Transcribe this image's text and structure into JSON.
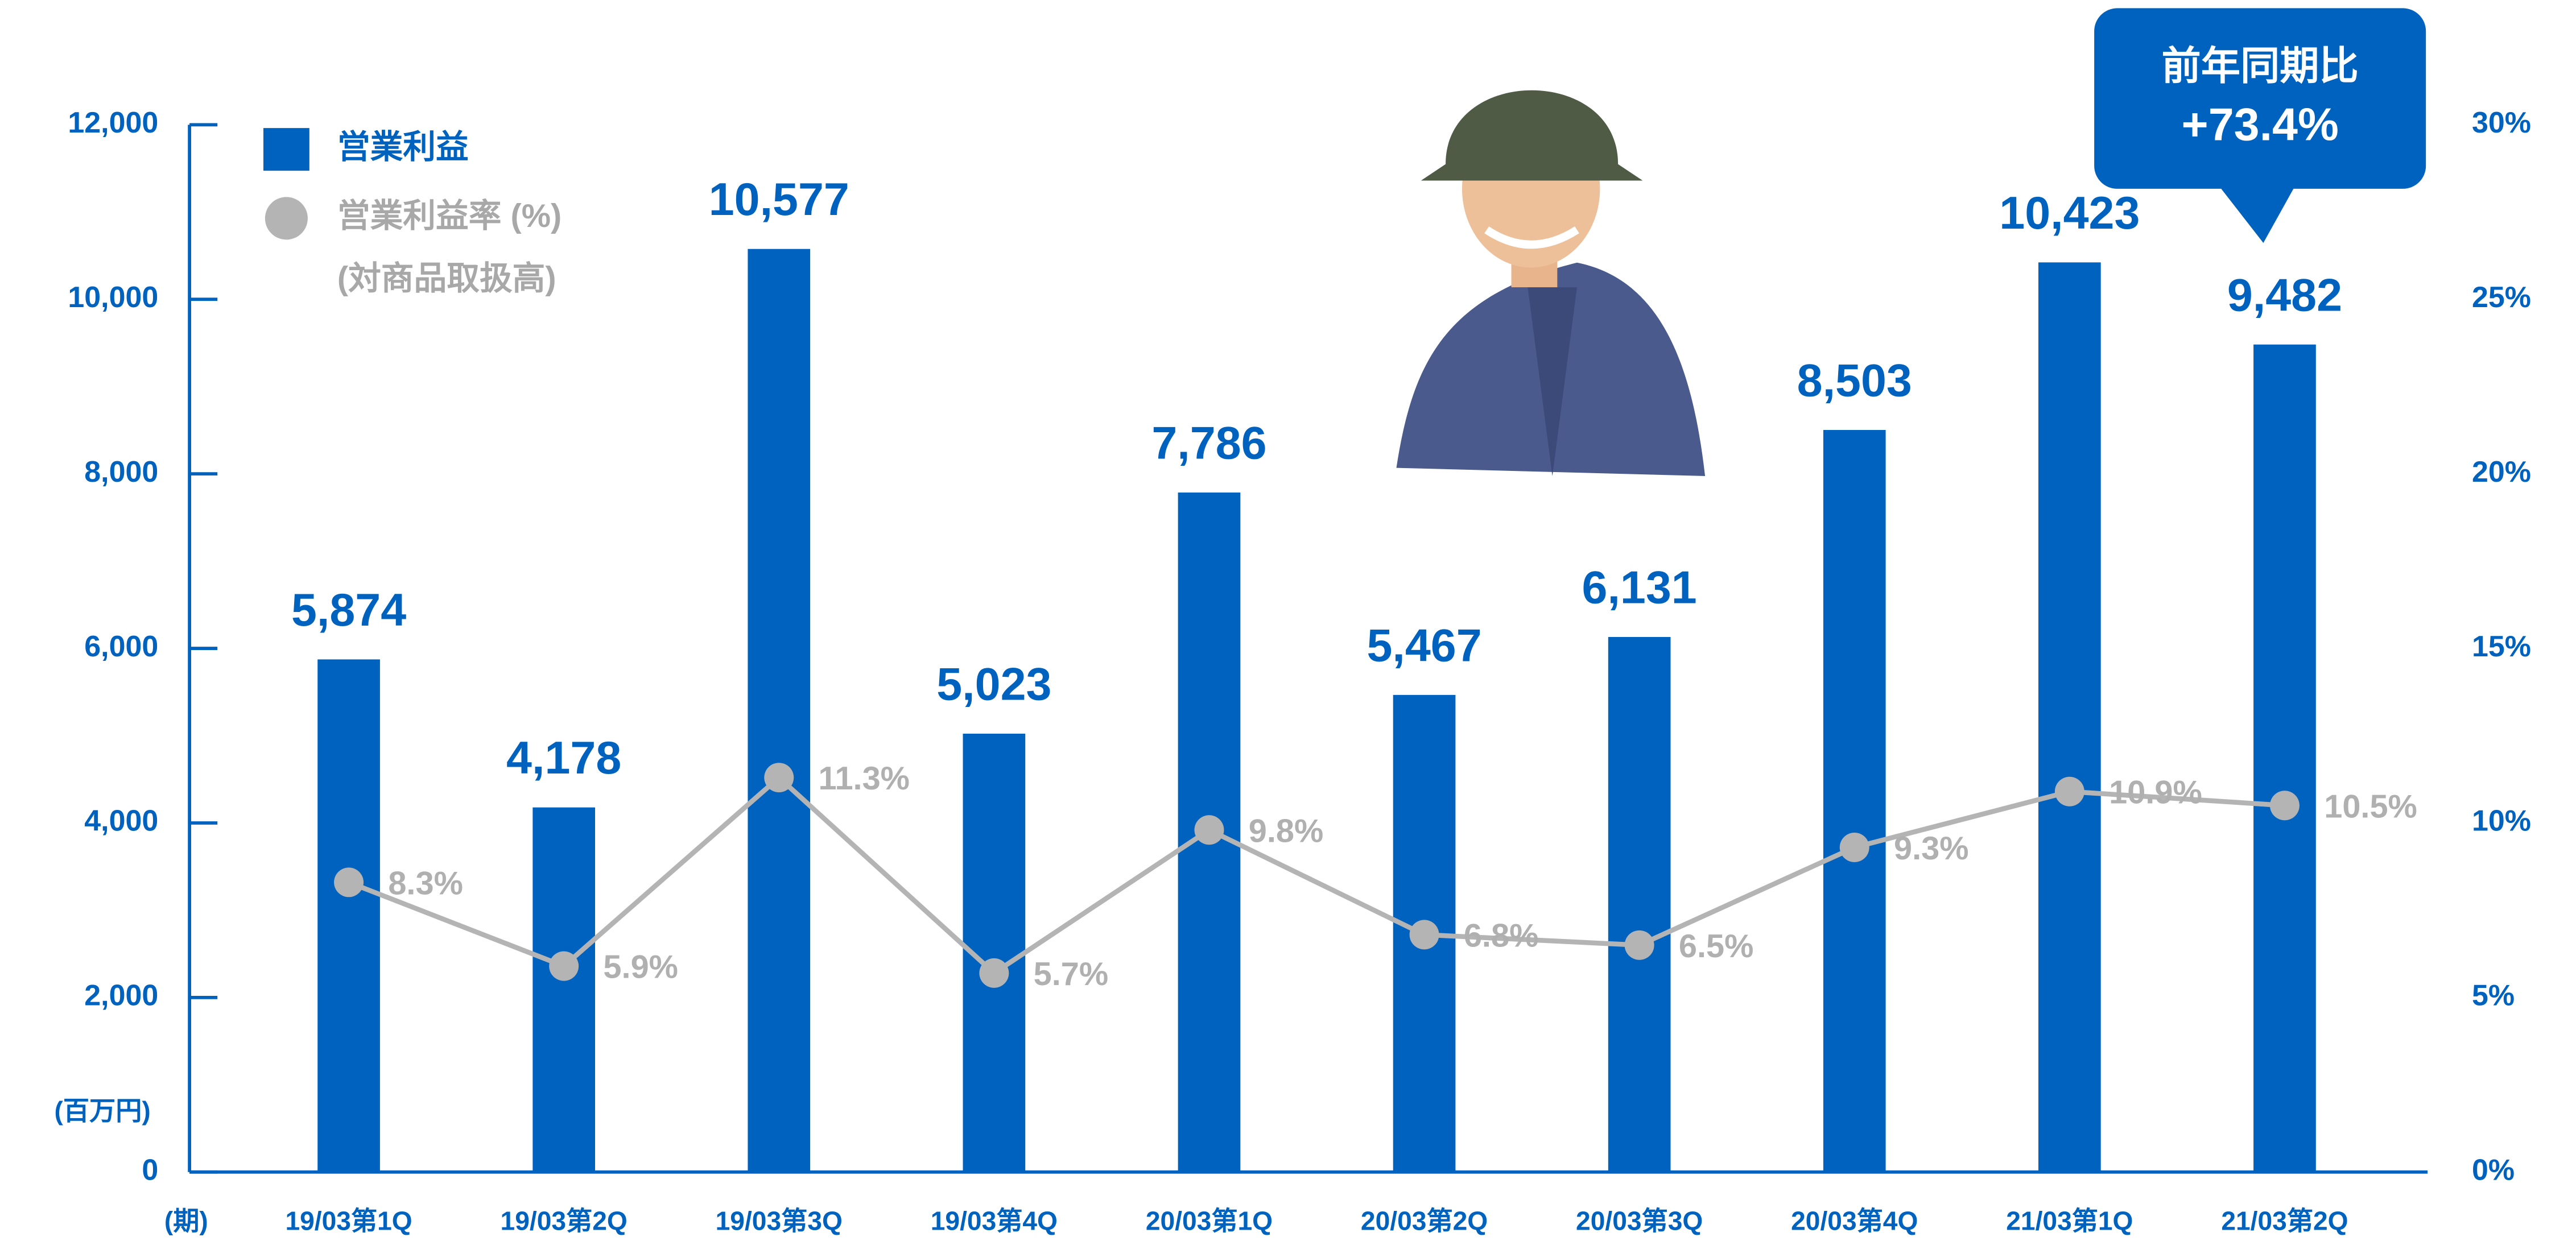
{
  "chart_data": {
    "type": "bar",
    "y_label": "(百万円)",
    "x_label": "(期)",
    "categories": [
      "19/03第1Q",
      "19/03第2Q",
      "19/03第3Q",
      "19/03第4Q",
      "20/03第1Q",
      "20/03第2Q",
      "20/03第3Q",
      "20/03第4Q",
      "21/03第1Q",
      "21/03第2Q"
    ],
    "series": [
      {
        "name": "営業利益",
        "type": "bar",
        "color": "#0062bf",
        "values": [
          5874,
          4178,
          10577,
          5023,
          7786,
          5467,
          6131,
          8503,
          10423,
          9482
        ],
        "value_labels": [
          "5,874",
          "4,178",
          "10,577",
          "5,023",
          "7,786",
          "5,467",
          "6,131",
          "8,503",
          "10,423",
          "9,482"
        ]
      },
      {
        "name": "営業利益率 (%)",
        "type": "line",
        "axis": "y2",
        "color": "#b4b4b4",
        "values": [
          8.3,
          5.9,
          11.3,
          5.7,
          9.8,
          6.8,
          6.5,
          9.3,
          10.9,
          10.5
        ],
        "value_labels": [
          "8.3%",
          "5.9%",
          "11.3%",
          "5.7%",
          "9.8%",
          "6.8%",
          "6.5%",
          "9.3%",
          "10.9%",
          "10.5%"
        ]
      }
    ],
    "legend_note": "(対商品取扱高)",
    "annotation": {
      "title": "前年同期比",
      "text": "+73.4%"
    },
    "ylim": [
      0,
      12000
    ],
    "yticks": [
      0,
      {
        "value": 2000,
        "label": "2,000"
      },
      {
        "value": 4000,
        "label": "4,000"
      },
      {
        "value": 6000,
        "label": "6,000"
      },
      {
        "value": 8000,
        "label": "8,000"
      },
      {
        "value": 10000,
        "label": "10,000"
      },
      {
        "value": 12000,
        "label": "12,000"
      }
    ],
    "y2lim": [
      0,
      30
    ],
    "y2ticks": [
      {
        "value": 0,
        "label": "0%"
      },
      {
        "value": 5,
        "label": "5%"
      },
      {
        "value": 10,
        "label": "10%"
      },
      {
        "value": 15,
        "label": "15%"
      },
      {
        "value": 20,
        "label": "20%"
      },
      {
        "value": 25,
        "label": "25%"
      },
      {
        "value": 30,
        "label": "30%"
      }
    ]
  }
}
